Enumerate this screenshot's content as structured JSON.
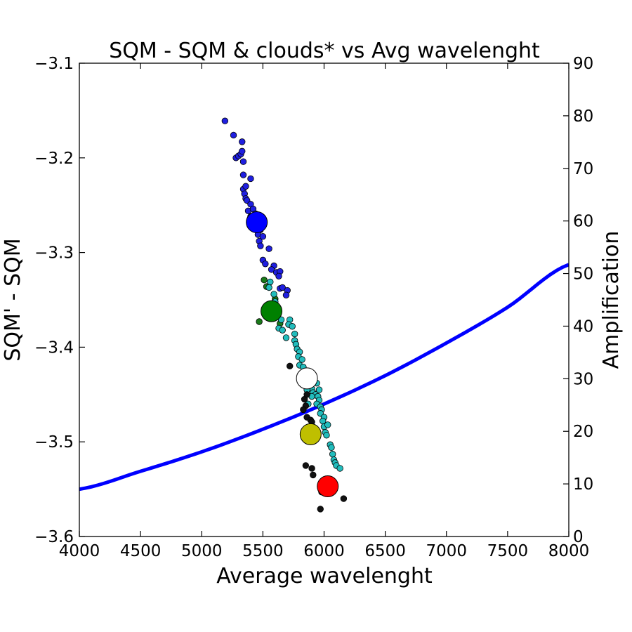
{
  "chart_data": {
    "type": "scatter",
    "title": "SQM - SQM & clouds* vs Avg wavelenght",
    "xlabel": "Average wavelenght",
    "ylabel": "SQM' - SQM",
    "y2label": "Amplification",
    "xlim": [
      4000,
      8000
    ],
    "ylim": [
      -3.6,
      -3.1
    ],
    "y2lim": [
      0,
      90
    ],
    "xticks": [
      "4000",
      "4500",
      "5000",
      "5500",
      "6000",
      "6500",
      "7000",
      "7500",
      "8000"
    ],
    "yticks": [
      "−3.1",
      "−3.2",
      "−3.3",
      "−3.4",
      "−3.5",
      "−3.6"
    ],
    "y2ticks": [
      "0",
      "10",
      "20",
      "30",
      "40",
      "50",
      "60",
      "70",
      "80",
      "90"
    ],
    "grid": false,
    "colors": {
      "blue": "#1f1fe0",
      "green": "#1a7a1a",
      "cyan": "#22bdbd",
      "black": "#111111",
      "curve": "#0000ff",
      "big_blue": "#0000ff",
      "big_green": "#008000",
      "big_white": "#ffffff",
      "big_yellow": "#bfbf00",
      "big_red": "#ff0000"
    },
    "series": [
      {
        "color": "blue",
        "points": [
          [
            5190,
            -3.161
          ],
          [
            5260,
            -3.176
          ],
          [
            5330,
            -3.183
          ],
          [
            5280,
            -3.2
          ],
          [
            5300,
            -3.198
          ],
          [
            5320,
            -3.196
          ],
          [
            5330,
            -3.193
          ],
          [
            5340,
            -3.204
          ],
          [
            5340,
            -3.218
          ],
          [
            5400,
            -3.222
          ],
          [
            5340,
            -3.233
          ],
          [
            5360,
            -3.23
          ],
          [
            5350,
            -3.238
          ],
          [
            5360,
            -3.243
          ],
          [
            5370,
            -3.245
          ],
          [
            5400,
            -3.249
          ],
          [
            5380,
            -3.256
          ],
          [
            5420,
            -3.254
          ],
          [
            5440,
            -3.259
          ],
          [
            5400,
            -3.262
          ],
          [
            5430,
            -3.266
          ],
          [
            5450,
            -3.272
          ],
          [
            5480,
            -3.276
          ],
          [
            5460,
            -3.281
          ],
          [
            5500,
            -3.283
          ],
          [
            5470,
            -3.288
          ],
          [
            5480,
            -3.293
          ],
          [
            5550,
            -3.296
          ],
          [
            5500,
            -3.308
          ],
          [
            5520,
            -3.312
          ],
          [
            5590,
            -3.314
          ],
          [
            5570,
            -3.318
          ],
          [
            5610,
            -3.321
          ],
          [
            5640,
            -3.32
          ],
          [
            5630,
            -3.325
          ],
          [
            5640,
            -3.338
          ],
          [
            5660,
            -3.337
          ],
          [
            5700,
            -3.34
          ],
          [
            5690,
            -3.345
          ]
        ]
      },
      {
        "color": "green",
        "points": [
          [
            5510,
            -3.329
          ],
          [
            5530,
            -3.336
          ],
          [
            5470,
            -3.373
          ],
          [
            5610,
            -3.367
          ],
          [
            5640,
            -3.375
          ],
          [
            5600,
            -3.349
          ],
          [
            5560,
            -3.357
          ]
        ]
      },
      {
        "color": "cyan",
        "points": [
          [
            5560,
            -3.331
          ],
          [
            5550,
            -3.337
          ],
          [
            5590,
            -3.344
          ],
          [
            5600,
            -3.352
          ],
          [
            5580,
            -3.36
          ],
          [
            5610,
            -3.366
          ],
          [
            5650,
            -3.371
          ],
          [
            5630,
            -3.38
          ],
          [
            5660,
            -3.382
          ],
          [
            5690,
            -3.39
          ],
          [
            5720,
            -3.371
          ],
          [
            5710,
            -3.376
          ],
          [
            5740,
            -3.378
          ],
          [
            5760,
            -3.386
          ],
          [
            5760,
            -3.393
          ],
          [
            5770,
            -3.397
          ],
          [
            5780,
            -3.402
          ],
          [
            5800,
            -3.405
          ],
          [
            5790,
            -3.41
          ],
          [
            5820,
            -3.413
          ],
          [
            5800,
            -3.419
          ],
          [
            5830,
            -3.421
          ],
          [
            5840,
            -3.426
          ],
          [
            5820,
            -3.431
          ],
          [
            5850,
            -3.434
          ],
          [
            5860,
            -3.437
          ],
          [
            5880,
            -3.44
          ],
          [
            5900,
            -3.444
          ],
          [
            5910,
            -3.448
          ],
          [
            5930,
            -3.45
          ],
          [
            5950,
            -3.452
          ],
          [
            5960,
            -3.456
          ],
          [
            5940,
            -3.46
          ],
          [
            5970,
            -3.463
          ],
          [
            5980,
            -3.466
          ],
          [
            5970,
            -3.47
          ],
          [
            6000,
            -3.474
          ],
          [
            5990,
            -3.478
          ],
          [
            6000,
            -3.484
          ],
          [
            6030,
            -3.482
          ],
          [
            6010,
            -3.49
          ],
          [
            6020,
            -3.493
          ],
          [
            6050,
            -3.503
          ],
          [
            6060,
            -3.506
          ],
          [
            6070,
            -3.513
          ],
          [
            6080,
            -3.519
          ],
          [
            6090,
            -3.522
          ],
          [
            6100,
            -3.525
          ],
          [
            6130,
            -3.528
          ],
          [
            5830,
            -3.44
          ],
          [
            5860,
            -3.445
          ],
          [
            5900,
            -3.452
          ],
          [
            5870,
            -3.46
          ],
          [
            5960,
            -3.445
          ],
          [
            5940,
            -3.438
          ]
        ]
      },
      {
        "color": "black",
        "points": [
          [
            5720,
            -3.42
          ],
          [
            5840,
            -3.455
          ],
          [
            5860,
            -3.45
          ],
          [
            5850,
            -3.462
          ],
          [
            5830,
            -3.466
          ],
          [
            5860,
            -3.474
          ],
          [
            5890,
            -3.477
          ],
          [
            5900,
            -3.479
          ],
          [
            5850,
            -3.525
          ],
          [
            5900,
            -3.528
          ],
          [
            5910,
            -3.535
          ],
          [
            5980,
            -3.553
          ],
          [
            5970,
            -3.571
          ],
          [
            6160,
            -3.56
          ],
          [
            5900,
            -3.485
          ]
        ]
      }
    ],
    "highlight_points": [
      {
        "x": 5450,
        "y": -3.268,
        "color": "big_blue"
      },
      {
        "x": 5570,
        "y": -3.362,
        "color": "big_green"
      },
      {
        "x": 5860,
        "y": -3.433,
        "color": "big_white"
      },
      {
        "x": 5890,
        "y": -3.492,
        "color": "big_yellow"
      },
      {
        "x": 6030,
        "y": -3.547,
        "color": "big_red"
      }
    ],
    "curve": {
      "axis": "y2",
      "x": [
        4000,
        4500,
        5000,
        5500,
        6000,
        6500,
        7000,
        7500,
        8000
      ],
      "y": [
        9.0,
        12.4,
        16.1,
        20.4,
        25.2,
        30.6,
        36.8,
        43.6,
        51.7
      ]
    }
  }
}
